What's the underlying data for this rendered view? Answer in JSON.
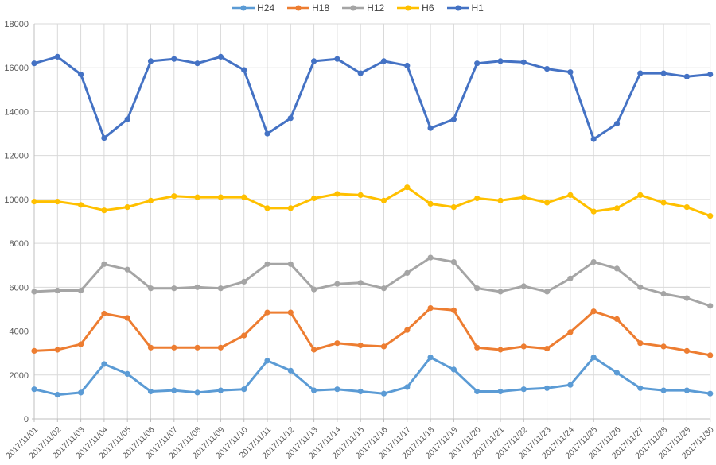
{
  "chart_data": {
    "type": "line",
    "title": "",
    "xlabel": "",
    "ylabel": "",
    "ylim": [
      0,
      18000
    ],
    "ytick_step": 2000,
    "grid": true,
    "legend_position": "top-center",
    "gridline_color": "#D9D9D9",
    "axis_line_color": "#BFBFBF",
    "axis_label_color": "#595959",
    "categories": [
      "2017/11/01",
      "2017/11/02",
      "2017/11/03",
      "2017/11/04",
      "2017/11/05",
      "2017/11/06",
      "2017/11/07",
      "2017/11/08",
      "2017/11/09",
      "2017/11/10",
      "2017/11/11",
      "2017/11/12",
      "2017/11/13",
      "2017/11/14",
      "2017/11/15",
      "2017/11/16",
      "2017/11/17",
      "2017/11/18",
      "2017/11/19",
      "2017/11/20",
      "2017/11/21",
      "2017/11/22",
      "2017/11/23",
      "2017/11/24",
      "2017/11/25",
      "2017/11/26",
      "2017/11/27",
      "2017/11/28",
      "2017/11/29",
      "2017/11/30"
    ],
    "series": [
      {
        "name": "H24",
        "color": "#5B9BD5",
        "values": [
          1350,
          1100,
          1200,
          2500,
          2050,
          1250,
          1300,
          1200,
          1300,
          1350,
          2650,
          2200,
          1300,
          1350,
          1250,
          1150,
          1450,
          2800,
          2250,
          1250,
          1250,
          1350,
          1400,
          1550,
          2800,
          2100,
          1400,
          1300,
          1300,
          1150
        ]
      },
      {
        "name": "H18",
        "color": "#ED7D31",
        "values": [
          3100,
          3150,
          3400,
          4800,
          4600,
          3250,
          3250,
          3250,
          3250,
          3800,
          4850,
          4850,
          3150,
          3450,
          3350,
          3300,
          4050,
          5050,
          4950,
          3250,
          3150,
          3300,
          3200,
          3950,
          4900,
          4550,
          3450,
          3300,
          3100,
          2900
        ]
      },
      {
        "name": "H12",
        "color": "#A5A5A5",
        "values": [
          5800,
          5850,
          5850,
          7050,
          6800,
          5950,
          5950,
          6000,
          5950,
          6250,
          7050,
          7050,
          5900,
          6150,
          6200,
          5950,
          6650,
          7350,
          7150,
          5950,
          5800,
          6050,
          5800,
          6400,
          7150,
          6850,
          6000,
          5700,
          5500,
          5150
        ]
      },
      {
        "name": "H6",
        "color": "#FFC000",
        "values": [
          9900,
          9900,
          9750,
          9500,
          9650,
          9950,
          10150,
          10100,
          10100,
          10100,
          9600,
          9600,
          10050,
          10250,
          10200,
          9950,
          10550,
          9800,
          9650,
          10050,
          9950,
          10100,
          9850,
          10200,
          9450,
          9600,
          10200,
          9850,
          9650,
          9250
        ]
      },
      {
        "name": "H1",
        "color": "#4472C4",
        "values": [
          16200,
          16500,
          15700,
          12800,
          13650,
          16300,
          16400,
          16200,
          16500,
          15900,
          13000,
          13700,
          16300,
          16400,
          15750,
          16300,
          16100,
          13250,
          13650,
          16200,
          16300,
          16250,
          15950,
          15800,
          12750,
          13450,
          15750,
          15750,
          15600,
          15700
        ]
      }
    ]
  }
}
